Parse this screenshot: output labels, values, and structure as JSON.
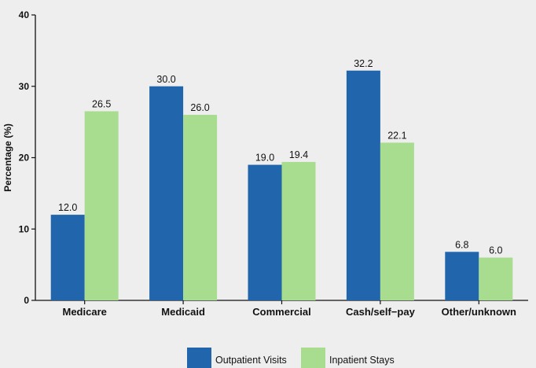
{
  "chart_data": {
    "type": "bar",
    "categories": [
      "Medicare",
      "Medicaid",
      "Commercial",
      "Cash/self−pay",
      "Other/unknown"
    ],
    "series": [
      {
        "name": "Outpatient Visits",
        "values": [
          12.0,
          30.0,
          19.0,
          32.2,
          6.8
        ],
        "color": "#2166ac"
      },
      {
        "name": "Inpatient Stays",
        "values": [
          26.5,
          26.0,
          19.4,
          22.1,
          6.0
        ],
        "color": "#a8dc8e"
      }
    ],
    "data_labels": [
      [
        "12.0",
        "30.0",
        "19.0",
        "32.2",
        "6.8"
      ],
      [
        "26.5",
        "26.0",
        "19.4",
        "22.1",
        "6.0"
      ]
    ],
    "yticks": [
      0,
      10,
      20,
      30,
      40
    ],
    "ylim": [
      0,
      40
    ],
    "ylabel": "Percentage (%)",
    "xlabel": "",
    "title": "",
    "grid": false,
    "legend_position": "bottom"
  }
}
